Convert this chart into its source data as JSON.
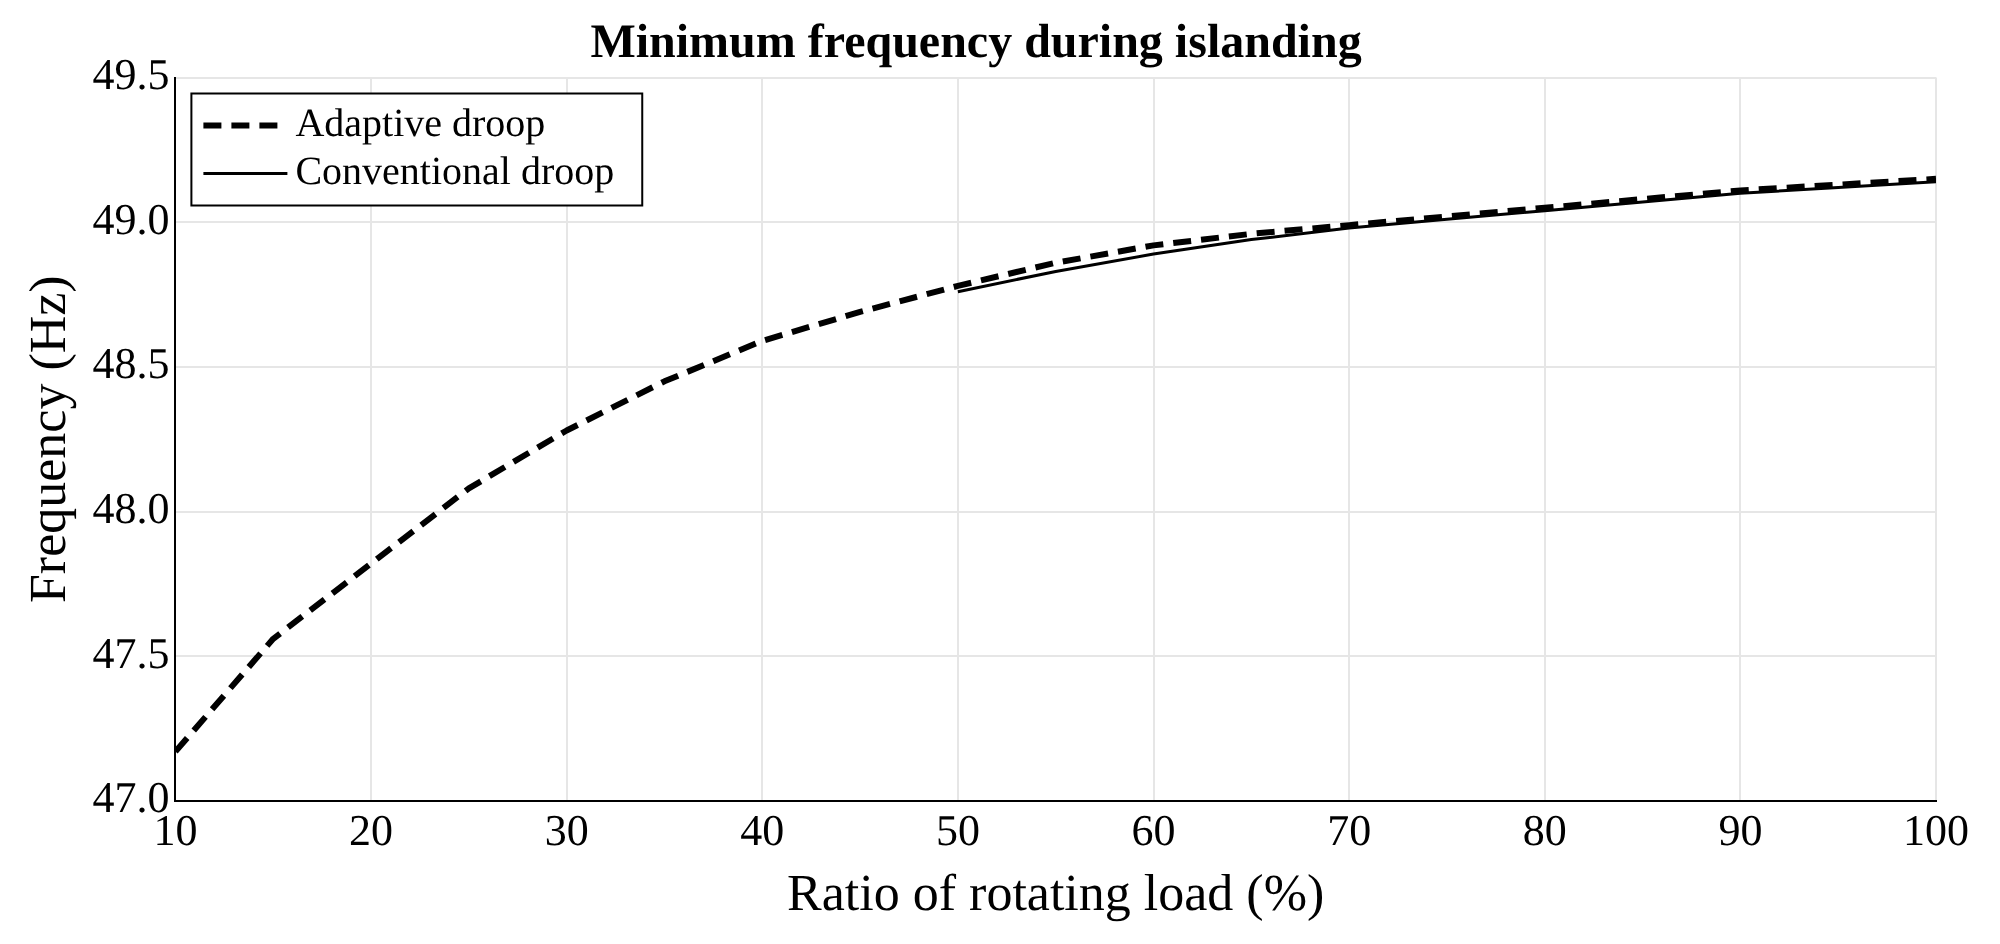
{
  "chart_data": {
    "type": "line",
    "title": "Minimum frequency during islanding",
    "xlabel": "Ratio of rotating load (%)",
    "ylabel": "Frequency (Hz)",
    "xlim": [
      10,
      100
    ],
    "xticks": [
      10,
      20,
      30,
      40,
      50,
      60,
      70,
      80,
      90,
      100
    ],
    "ylim": [
      47.0,
      49.5
    ],
    "yticks": [
      {
        "value": 47.0,
        "label": "47.0"
      },
      {
        "value": 47.5,
        "label": "47.5"
      },
      {
        "value": 48.0,
        "label": "48.0"
      },
      {
        "value": 48.5,
        "label": "48.5"
      },
      {
        "value": 49.0,
        "label": "49.0"
      },
      {
        "value": 49.5,
        "label": "49.5"
      }
    ],
    "grid": true,
    "legend": "top left",
    "marker": "none",
    "series": [
      {
        "name": "Adaptive droop",
        "color": "#000000",
        "line_style": "dashed",
        "x": [
          10,
          15,
          20,
          25,
          30,
          35,
          40,
          45,
          50,
          55,
          60,
          65,
          70,
          75,
          80,
          85,
          90,
          95,
          100
        ],
        "values": [
          47.17,
          47.56,
          47.82,
          48.08,
          48.28,
          48.45,
          48.59,
          48.69,
          48.78,
          48.86,
          48.92,
          48.96,
          48.99,
          49.02,
          49.05,
          49.08,
          49.11,
          49.13,
          49.15
        ]
      },
      {
        "name": "Conventional droop",
        "color": "#000000",
        "line_style": "solid",
        "x": [
          50,
          55,
          60,
          65,
          70,
          75,
          80,
          85,
          90,
          95,
          100
        ],
        "values": [
          48.76,
          48.83,
          48.89,
          48.94,
          48.98,
          49.01,
          49.04,
          49.07,
          49.1,
          49.12,
          49.14
        ]
      }
    ]
  }
}
